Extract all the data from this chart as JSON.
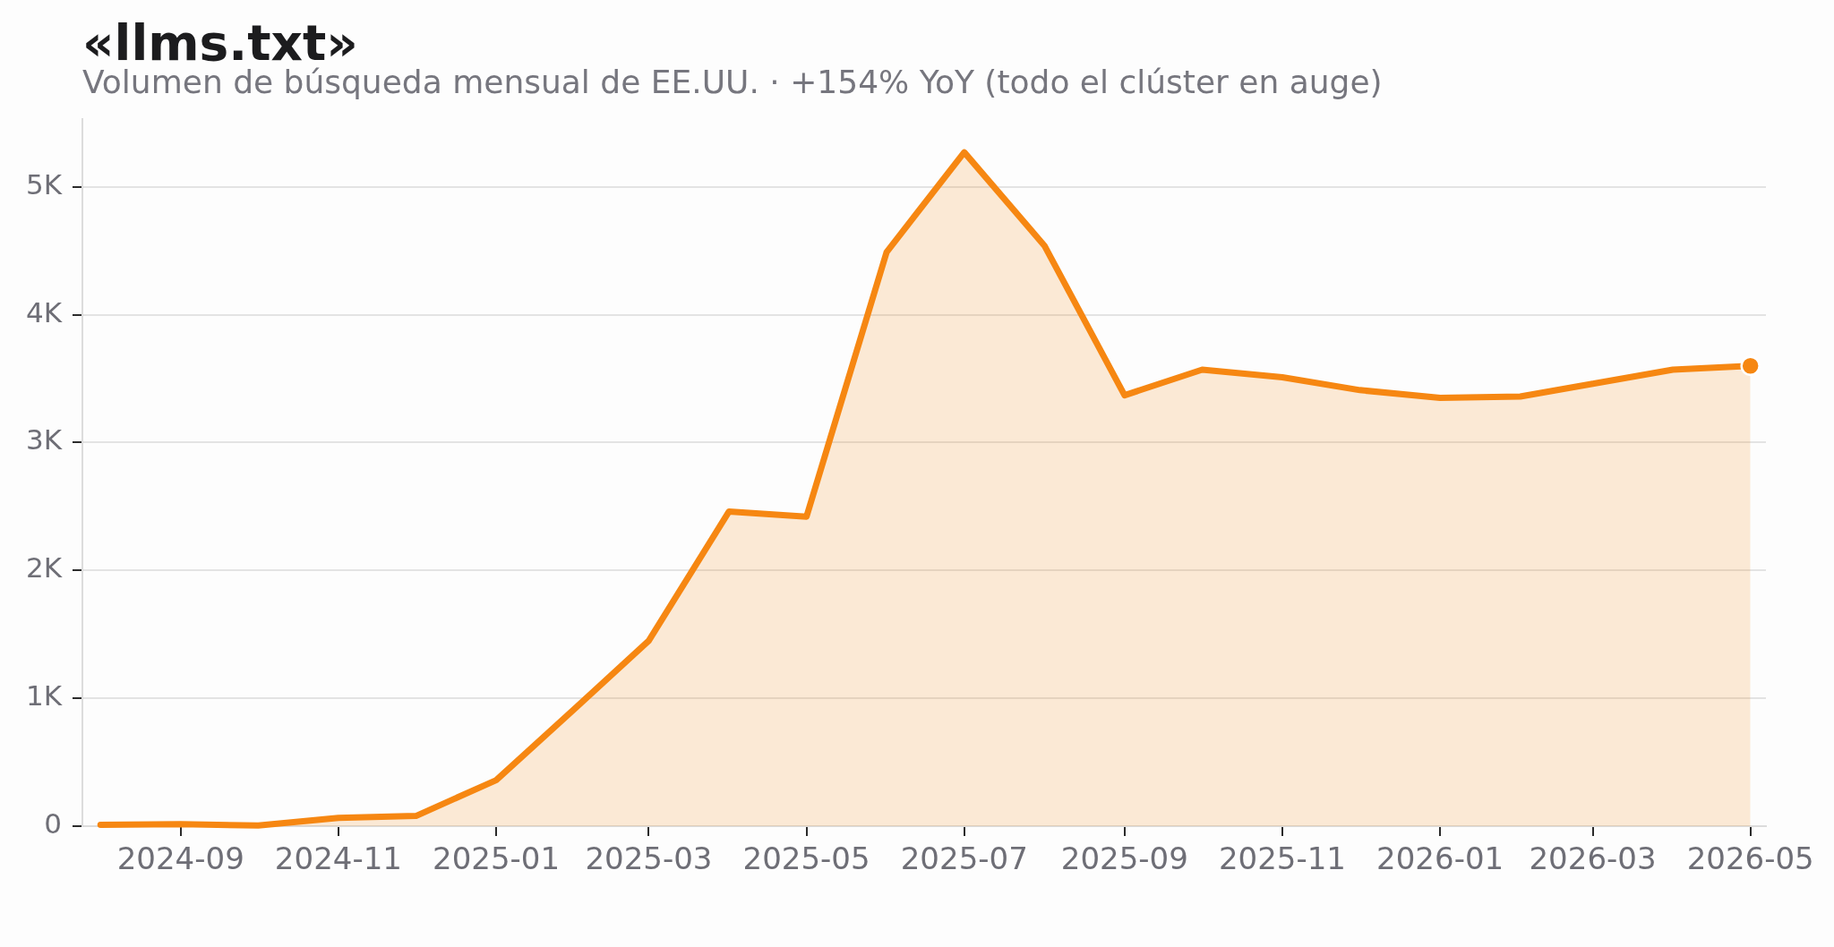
{
  "chart_data": {
    "type": "area",
    "title": "«llms.txt»",
    "subtitle": "Volumen de búsqueda mensual de EE.UU. · +154% YoY (todo el clúster en auge)",
    "x": [
      "2024-08",
      "2024-09",
      "2024-10",
      "2024-11",
      "2024-12",
      "2025-01",
      "2025-02",
      "2025-03",
      "2025-04",
      "2025-05",
      "2025-06",
      "2025-07",
      "2025-08",
      "2025-09",
      "2025-10",
      "2025-11",
      "2025-12",
      "2026-01",
      "2026-02",
      "2026-03",
      "2026-04",
      "2026-05"
    ],
    "series": [
      {
        "color": "#f68712",
        "marker": "none",
        "values": [
          10,
          15,
          5,
          65,
          80,
          360,
          930,
          1450,
          2460,
          2420,
          4490,
          5270,
          4540,
          3370,
          3570,
          3510,
          3410,
          3350,
          3360,
          3460,
          3570,
          3600
        ]
      },
      {
        "type": "scatter",
        "color": "#f68712",
        "marker": "circle",
        "x": [
          "2026-05"
        ],
        "values": [
          3600
        ]
      }
    ],
    "xlim": [
      "2024-07-25",
      "2026-05-07"
    ],
    "xticks": [
      "2024-09",
      "2024-11",
      "2025-01",
      "2025-03",
      "2025-05",
      "2025-07",
      "2025-09",
      "2025-11",
      "2026-01",
      "2026-03",
      "2026-05"
    ],
    "ylim": [
      0,
      5530
    ],
    "yticks": [
      0,
      {
        "value": 1000,
        "label": "1K"
      },
      {
        "value": 2000,
        "label": "2K"
      },
      {
        "value": 3000,
        "label": "3K"
      },
      {
        "value": 4000,
        "label": "4K"
      },
      {
        "value": 5000,
        "label": "5K"
      }
    ],
    "grid": "y"
  }
}
